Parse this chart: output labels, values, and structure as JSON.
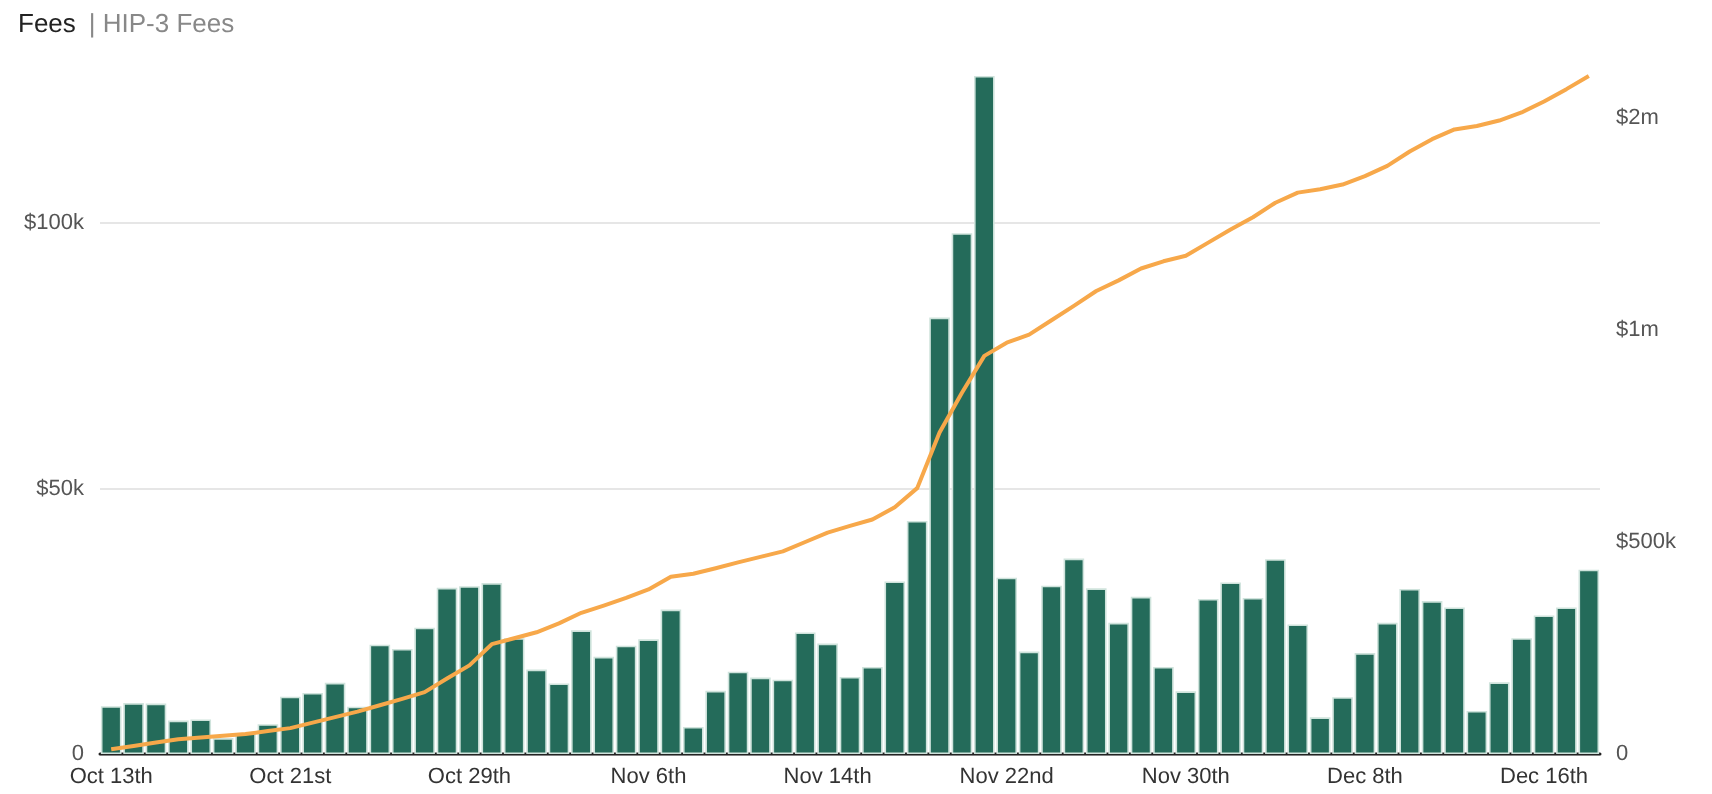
{
  "chart_data": {
    "type": "bar",
    "title": "Fees",
    "subtitle": "| HIP-3 Fees",
    "categories": [
      "Oct 13th",
      null,
      null,
      null,
      null,
      null,
      null,
      null,
      "Oct 21st",
      null,
      null,
      null,
      null,
      null,
      null,
      null,
      "Oct 29th",
      null,
      null,
      null,
      null,
      null,
      null,
      null,
      "Nov 6th",
      null,
      null,
      null,
      null,
      null,
      null,
      null,
      "Nov 14th",
      null,
      null,
      null,
      null,
      null,
      null,
      null,
      "Nov 22nd",
      null,
      null,
      null,
      null,
      null,
      null,
      null,
      "Nov 30th",
      null,
      null,
      null,
      null,
      null,
      null,
      null,
      "Dec 8th",
      null,
      null,
      null,
      null,
      null,
      null,
      null,
      "Dec 16th",
      null,
      null
    ],
    "series": [
      {
        "color": "#246b5a",
        "values": [
          9000,
          9600,
          9500,
          6300,
          6500,
          3000,
          3900,
          5600,
          10800,
          11500,
          13400,
          8900,
          20600,
          19800,
          23800,
          31300,
          31600,
          32200,
          21800,
          15900,
          13300,
          23300,
          18300,
          20400,
          21600,
          27200,
          5100,
          11900,
          15500,
          14400,
          14000,
          22900,
          20800,
          14500,
          16400,
          32500,
          43900,
          82200,
          98100,
          127700,
          33200,
          19300,
          31700,
          36800,
          31200,
          24700,
          29600,
          16400,
          11800,
          29200,
          32300,
          29400,
          36700,
          24400,
          6900,
          10700,
          19000,
          24700,
          31100,
          28800,
          27600,
          8100,
          13500,
          21800,
          26100,
          27600,
          34700
        ]
      },
      {
        "type": "line",
        "axis": "y2",
        "color": "#f7a84a",
        "values": [
          11000,
          19000,
          27000,
          35000,
          39000,
          43000,
          47000,
          54000,
          61000,
          74000,
          87000,
          100000,
          115000,
          130000,
          146000,
          178000,
          209000,
          259000,
          273000,
          287000,
          308000,
          333000,
          350000,
          368000,
          388000,
          418000,
          425000,
          438000,
          452000,
          465000,
          478000,
          500000,
          522000,
          538000,
          553000,
          582000,
          627000,
          758000,
          852000,
          939000,
          970000,
          989000,
          1023000,
          1057000,
          1092000,
          1117000,
          1145000,
          1162000,
          1175000,
          1206000,
          1237000,
          1266000,
          1300000,
          1324000,
          1332000,
          1343000,
          1363000,
          1387000,
          1421000,
          1450000,
          1473000,
          1481000,
          1494000,
          1513000,
          1539000,
          1568000,
          1599000
        ]
      }
    ],
    "ylim": [
      0,
      127700
    ],
    "yticks": [
      0,
      {
        "value": 50000,
        "label": "$50k"
      },
      {
        "value": 100000,
        "label": "$100k"
      }
    ],
    "y2lim": [
      0,
      1599000
    ],
    "y2ticks": [
      0,
      {
        "value": 500000,
        "label": "$500k"
      },
      {
        "value": 1000000,
        "label": "$1m"
      },
      {
        "value": 1500000,
        "label": "$2m"
      }
    ],
    "grid": "y",
    "marker": "none",
    "line_style": "solid"
  }
}
